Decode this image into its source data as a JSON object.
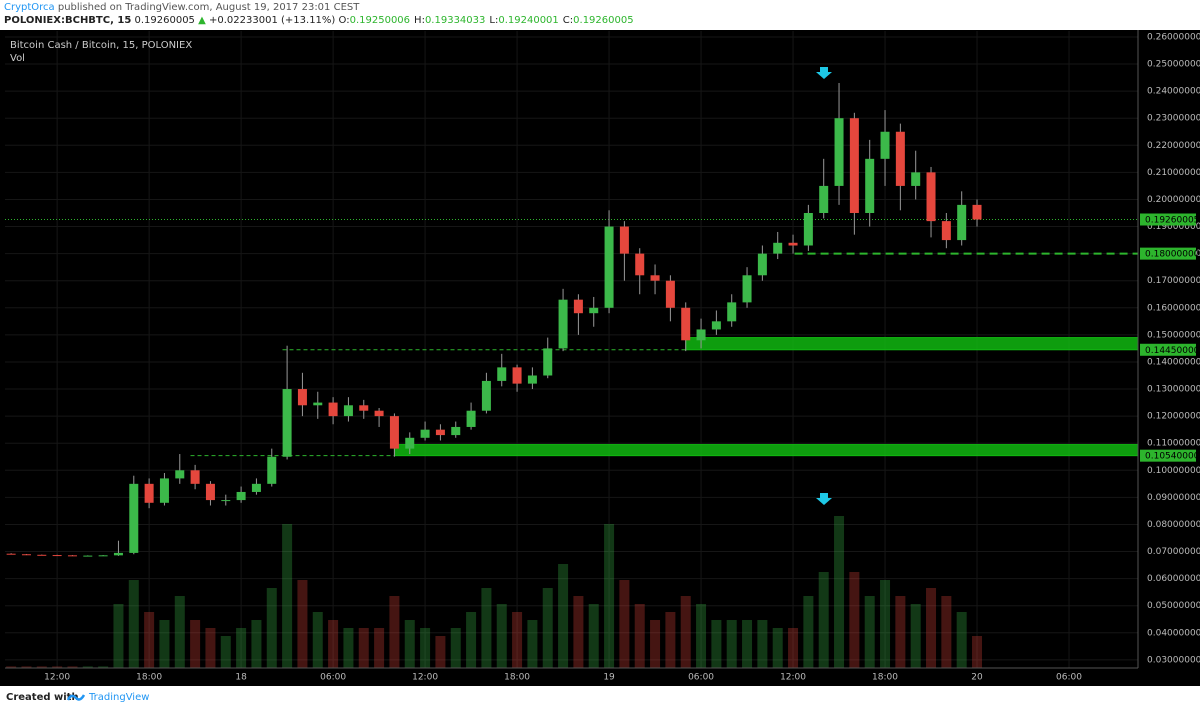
{
  "header": {
    "author": "CryptOrca",
    "published": "published on TradingView.com, August 19, 2017 23:01 CEST",
    "symbol": "POLONIEX:BCHBTC, 15",
    "last": "0.19260005",
    "change_arrow": "▲",
    "change": "+0.02233001 (+13.11%)",
    "ohlc": [
      {
        "label": "O:",
        "value": "0.19250006"
      },
      {
        "label": "H:",
        "value": "0.19334033"
      },
      {
        "label": "L:",
        "value": "0.19240001"
      },
      {
        "label": "C:",
        "value": "0.19260005"
      }
    ]
  },
  "chart_data": {
    "type": "candlestick",
    "title": "Bitcoin Cash / Bitcoin, 15, POLONIEX",
    "volume_label": "Vol",
    "up_color": "#3cb94a",
    "down_color": "#e5473d",
    "zone_color": "#11b811",
    "level_color": "#2db52d",
    "xlim": [
      8.6,
      82.5
    ],
    "ylim": [
      0.027,
      0.2622
    ],
    "xticks": [
      {
        "value": 12,
        "label": "12:00"
      },
      {
        "value": 18,
        "label": "18:00"
      },
      {
        "value": 24,
        "label": "18"
      },
      {
        "value": 30,
        "label": "06:00"
      },
      {
        "value": 36,
        "label": "12:00"
      },
      {
        "value": 42,
        "label": "18:00"
      },
      {
        "value": 48,
        "label": "19"
      },
      {
        "value": 54,
        "label": "06:00"
      },
      {
        "value": 60,
        "label": "12:00"
      },
      {
        "value": 66,
        "label": "18:00"
      },
      {
        "value": 72,
        "label": "20"
      },
      {
        "value": 78,
        "label": "06:00"
      }
    ],
    "yticks": [
      {
        "value": 0.03,
        "label": "0.03000000"
      },
      {
        "value": 0.04,
        "label": "0.04000000"
      },
      {
        "value": 0.05,
        "label": "0.05000000"
      },
      {
        "value": 0.06,
        "label": "0.06000000"
      },
      {
        "value": 0.07,
        "label": "0.07000000"
      },
      {
        "value": 0.08,
        "label": "0.08000000"
      },
      {
        "value": 0.09,
        "label": "0.09000000"
      },
      {
        "value": 0.1,
        "label": "0.10000000"
      },
      {
        "value": 0.11,
        "label": "0.11000000"
      },
      {
        "value": 0.12,
        "label": "0.12000000"
      },
      {
        "value": 0.13,
        "label": "0.13000000"
      },
      {
        "value": 0.14,
        "label": "0.14000000"
      },
      {
        "value": 0.15,
        "label": "0.15000000"
      },
      {
        "value": 0.16,
        "label": "0.16000000"
      },
      {
        "value": 0.17,
        "label": "0.17000000"
      },
      {
        "value": 0.18,
        "label": "0.18000000"
      },
      {
        "value": 0.19,
        "label": "0.19000000"
      },
      {
        "value": 0.2,
        "label": "0.20000000"
      },
      {
        "value": 0.21,
        "label": "0.21000000"
      },
      {
        "value": 0.22,
        "label": "0.22000000"
      },
      {
        "value": 0.23,
        "label": "0.23000000"
      },
      {
        "value": 0.24,
        "label": "0.24000000"
      },
      {
        "value": 0.25,
        "label": "0.25000000"
      },
      {
        "value": 0.26,
        "label": "0.26000000"
      }
    ],
    "x": [
      9,
      10,
      11,
      12,
      13,
      14,
      15,
      16,
      17,
      18,
      19,
      20,
      21,
      22,
      23,
      24,
      25,
      26,
      27,
      28,
      29,
      30,
      31,
      32,
      33,
      34,
      35,
      36,
      37,
      38,
      39,
      40,
      41,
      42,
      43,
      44,
      45,
      46,
      47,
      48,
      49,
      50,
      51,
      52,
      53,
      54,
      55,
      56,
      57,
      58,
      59,
      60,
      61,
      62,
      63,
      64,
      65,
      66,
      67,
      68,
      69,
      70,
      71,
      72
    ],
    "open": [
      0.0692,
      0.069,
      0.0688,
      0.0687,
      0.0686,
      0.0685,
      0.0685,
      0.0686,
      0.0695,
      0.095,
      0.088,
      0.097,
      0.1,
      0.095,
      0.089,
      0.089,
      0.092,
      0.095,
      0.105,
      0.13,
      0.124,
      0.125,
      0.12,
      0.124,
      0.122,
      0.12,
      0.108,
      0.112,
      0.115,
      0.113,
      0.116,
      0.122,
      0.133,
      0.138,
      0.132,
      0.135,
      0.145,
      0.163,
      0.158,
      0.16,
      0.19,
      0.18,
      0.172,
      0.17,
      0.16,
      0.148,
      0.152,
      0.155,
      0.162,
      0.172,
      0.18,
      0.184,
      0.183,
      0.195,
      0.205,
      0.23,
      0.195,
      0.215,
      0.225,
      0.205,
      0.21,
      0.192,
      0.185,
      0.198
    ],
    "high": [
      0.0694,
      0.0691,
      0.0689,
      0.0688,
      0.0687,
      0.0686,
      0.0687,
      0.074,
      0.098,
      0.097,
      0.099,
      0.106,
      0.102,
      0.096,
      0.091,
      0.094,
      0.097,
      0.108,
      0.146,
      0.136,
      0.129,
      0.127,
      0.127,
      0.126,
      0.123,
      0.121,
      0.114,
      0.118,
      0.117,
      0.118,
      0.125,
      0.136,
      0.143,
      0.139,
      0.138,
      0.149,
      0.167,
      0.165,
      0.164,
      0.196,
      0.192,
      0.182,
      0.176,
      0.172,
      0.162,
      0.156,
      0.159,
      0.165,
      0.175,
      0.183,
      0.188,
      0.187,
      0.198,
      0.215,
      0.243,
      0.232,
      0.222,
      0.233,
      0.228,
      0.218,
      0.212,
      0.195,
      0.203,
      0.2
    ],
    "low": [
      0.0689,
      0.0687,
      0.0686,
      0.0685,
      0.0684,
      0.0684,
      0.0684,
      0.0684,
      0.069,
      0.086,
      0.087,
      0.095,
      0.093,
      0.087,
      0.087,
      0.088,
      0.091,
      0.094,
      0.104,
      0.12,
      0.119,
      0.117,
      0.118,
      0.119,
      0.116,
      0.105,
      0.106,
      0.111,
      0.111,
      0.112,
      0.115,
      0.121,
      0.131,
      0.129,
      0.13,
      0.134,
      0.144,
      0.15,
      0.153,
      0.158,
      0.17,
      0.165,
      0.165,
      0.155,
      0.144,
      0.145,
      0.15,
      0.153,
      0.16,
      0.17,
      0.178,
      0.18,
      0.181,
      0.193,
      0.198,
      0.187,
      0.19,
      0.205,
      0.196,
      0.2,
      0.186,
      0.182,
      0.183,
      0.19
    ],
    "close": [
      0.069,
      0.0688,
      0.0687,
      0.0686,
      0.0685,
      0.0685,
      0.0686,
      0.0695,
      0.095,
      0.088,
      0.097,
      0.1,
      0.095,
      0.089,
      0.089,
      0.092,
      0.095,
      0.105,
      0.13,
      0.124,
      0.125,
      0.12,
      0.124,
      0.122,
      0.12,
      0.108,
      0.112,
      0.115,
      0.113,
      0.116,
      0.122,
      0.133,
      0.138,
      0.132,
      0.135,
      0.145,
      0.163,
      0.158,
      0.16,
      0.19,
      0.18,
      0.172,
      0.17,
      0.16,
      0.148,
      0.152,
      0.155,
      0.162,
      0.172,
      0.18,
      0.184,
      0.183,
      0.195,
      0.205,
      0.23,
      0.195,
      0.215,
      0.225,
      0.205,
      0.21,
      0.192,
      0.185,
      0.198,
      0.19260005
    ],
    "volume": [
      1,
      1,
      1,
      1,
      1,
      1,
      1,
      40,
      55,
      35,
      30,
      45,
      30,
      25,
      20,
      25,
      30,
      50,
      90,
      55,
      35,
      30,
      25,
      25,
      25,
      45,
      30,
      25,
      20,
      25,
      35,
      50,
      40,
      35,
      30,
      50,
      65,
      45,
      40,
      90,
      55,
      40,
      30,
      35,
      45,
      40,
      30,
      30,
      30,
      30,
      25,
      25,
      45,
      60,
      95,
      60,
      45,
      55,
      45,
      40,
      50,
      45,
      35,
      20
    ],
    "zones": [
      {
        "low": 0.1445,
        "high": 0.149,
        "from": 53
      },
      {
        "low": 0.1054,
        "high": 0.1095,
        "from": 34
      }
    ],
    "levels": [
      {
        "value": 0.19260005,
        "label": "0.19260005",
        "style": "dotted"
      },
      {
        "value": 0.18,
        "label": "0.18000000",
        "style": "dashed",
        "from": 60.1
      },
      {
        "value": 0.1445,
        "label": "0.14450000",
        "style": "thin-dashed",
        "from": 26.7,
        "to": 53
      },
      {
        "value": 0.1054,
        "label": "0.10540000",
        "style": "thin-dashed",
        "from": 20.7,
        "to": 34
      }
    ]
  },
  "footer": {
    "created": "Created with",
    "brand": "TradingView"
  }
}
